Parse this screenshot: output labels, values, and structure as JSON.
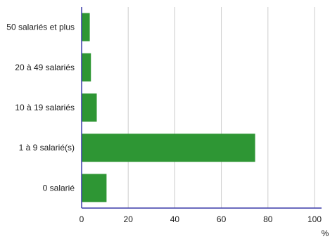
{
  "chart_data": {
    "type": "bar",
    "orientation": "horizontal",
    "categories": [
      "50 salariés et plus",
      "20 à 49 salariés",
      "10 à 19 salariés",
      "1 à 9 salarié(s)",
      "0 salarié"
    ],
    "values": [
      3.5,
      4,
      6.5,
      74.5,
      10.7
    ],
    "xlim": [
      0,
      100
    ],
    "xticks": [
      "0",
      "20",
      "40",
      "60",
      "80",
      "100"
    ],
    "unit_label": "%",
    "grid": "vertical",
    "colors": {
      "bar": "#2e9634",
      "axis": "#3a3aa8",
      "grid": "#cccccc"
    }
  }
}
